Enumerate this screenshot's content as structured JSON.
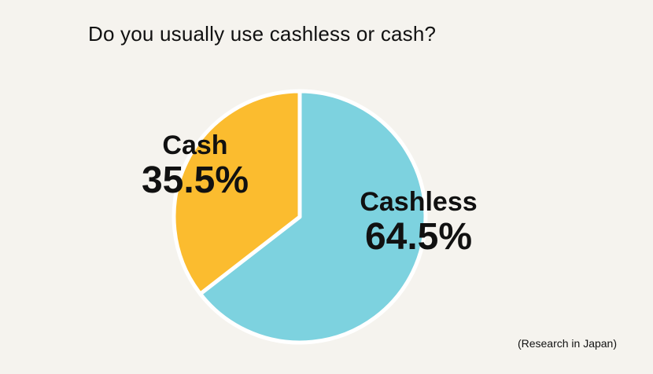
{
  "chart_data": {
    "type": "pie",
    "title": "Do you usually use cashless or cash?",
    "source_note": "(Research in Japan)",
    "slices": [
      {
        "name": "Cash",
        "value": 35.5,
        "value_label": "35.5%",
        "color": "#fbbc2f"
      },
      {
        "name": "Cashless",
        "value": 64.5,
        "value_label": "64.5%",
        "color": "#7dd2df"
      }
    ],
    "legend": "none",
    "label_placement": "on-slice"
  }
}
